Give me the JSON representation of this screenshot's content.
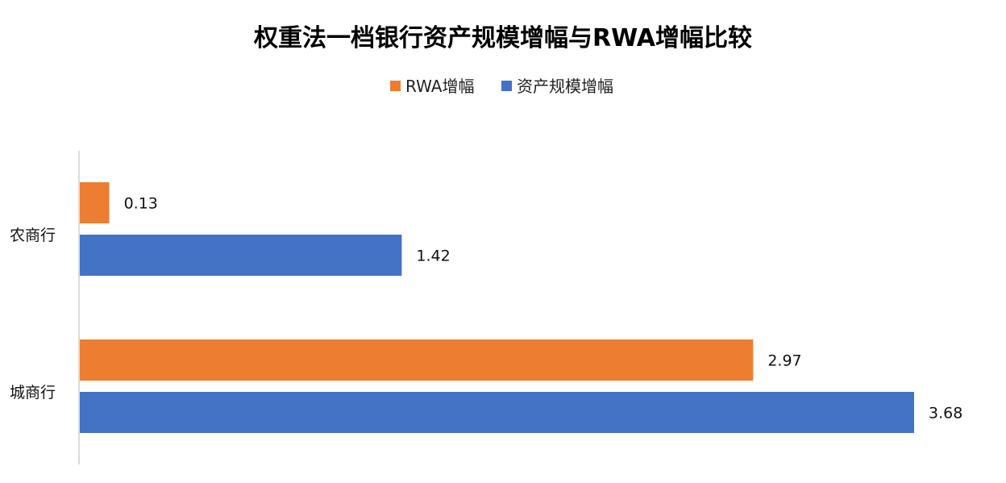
{
  "chart_data": {
    "type": "bar",
    "orientation": "horizontal",
    "title": "权重法一档银行资产规模增幅与RWA增幅比较",
    "xlabel": "",
    "ylabel": "",
    "categories": [
      "农商行",
      "城商行"
    ],
    "series": [
      {
        "name": "RWA增幅",
        "color": "#ED7D31",
        "values": [
          0.13,
          2.97
        ]
      },
      {
        "name": "资产规模增幅",
        "color": "#4472C4",
        "values": [
          1.42,
          3.68
        ]
      }
    ],
    "data_labels": [
      [
        "0.13",
        "2.97"
      ],
      [
        "1.42",
        "3.68"
      ]
    ],
    "xlim": [
      0,
      4
    ],
    "grid": false,
    "legend_position": "top"
  }
}
